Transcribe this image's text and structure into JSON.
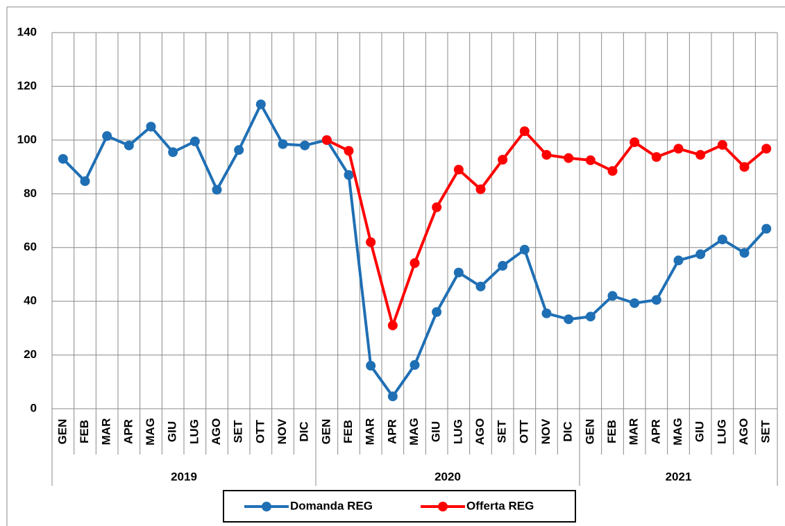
{
  "chart_data": {
    "type": "line",
    "groups": [
      {
        "name": "2019",
        "categories": [
          "GEN",
          "FEB",
          "MAR",
          "APR",
          "MAG",
          "GIU",
          "LUG",
          "AGO",
          "SET",
          "OTT",
          "NOV",
          "DIC"
        ]
      },
      {
        "name": "2020",
        "categories": [
          "GEN",
          "FEB",
          "MAR",
          "APR",
          "MAG",
          "GIU",
          "LUG",
          "AGO",
          "SET",
          "OTT",
          "NOV",
          "DIC"
        ]
      },
      {
        "name": "2021",
        "categories": [
          "GEN",
          "FEB",
          "MAR",
          "APR",
          "MAG",
          "GIU",
          "LUG",
          "AGO",
          "SET"
        ]
      }
    ],
    "series": [
      {
        "name": "Domanda REG",
        "color": "#1f6fb4",
        "values": [
          93,
          84.7,
          101.5,
          98,
          105,
          95.5,
          99.5,
          81.5,
          96.3,
          113.3,
          98.5,
          98,
          100,
          87,
          16,
          4.6,
          16.3,
          36,
          50.7,
          45.5,
          53.2,
          59.2,
          35.5,
          33.3,
          34.3,
          42,
          39.3,
          40.5,
          55.2,
          57.5,
          63,
          58,
          67
        ]
      },
      {
        "name": "Offerta REG",
        "color": "#ff0000",
        "values": [
          null,
          null,
          null,
          null,
          null,
          null,
          null,
          null,
          null,
          null,
          null,
          null,
          100,
          96,
          62,
          31,
          54.2,
          75,
          89,
          81.7,
          92.7,
          103.3,
          94.5,
          93.3,
          92.5,
          88.5,
          99.2,
          93.7,
          96.8,
          94.5,
          98.2,
          90,
          96.8
        ]
      }
    ],
    "ylim": [
      0,
      140
    ],
    "yticks": [
      0,
      20,
      40,
      60,
      80,
      100,
      120,
      140
    ],
    "grid": true,
    "legend": "bottom"
  }
}
